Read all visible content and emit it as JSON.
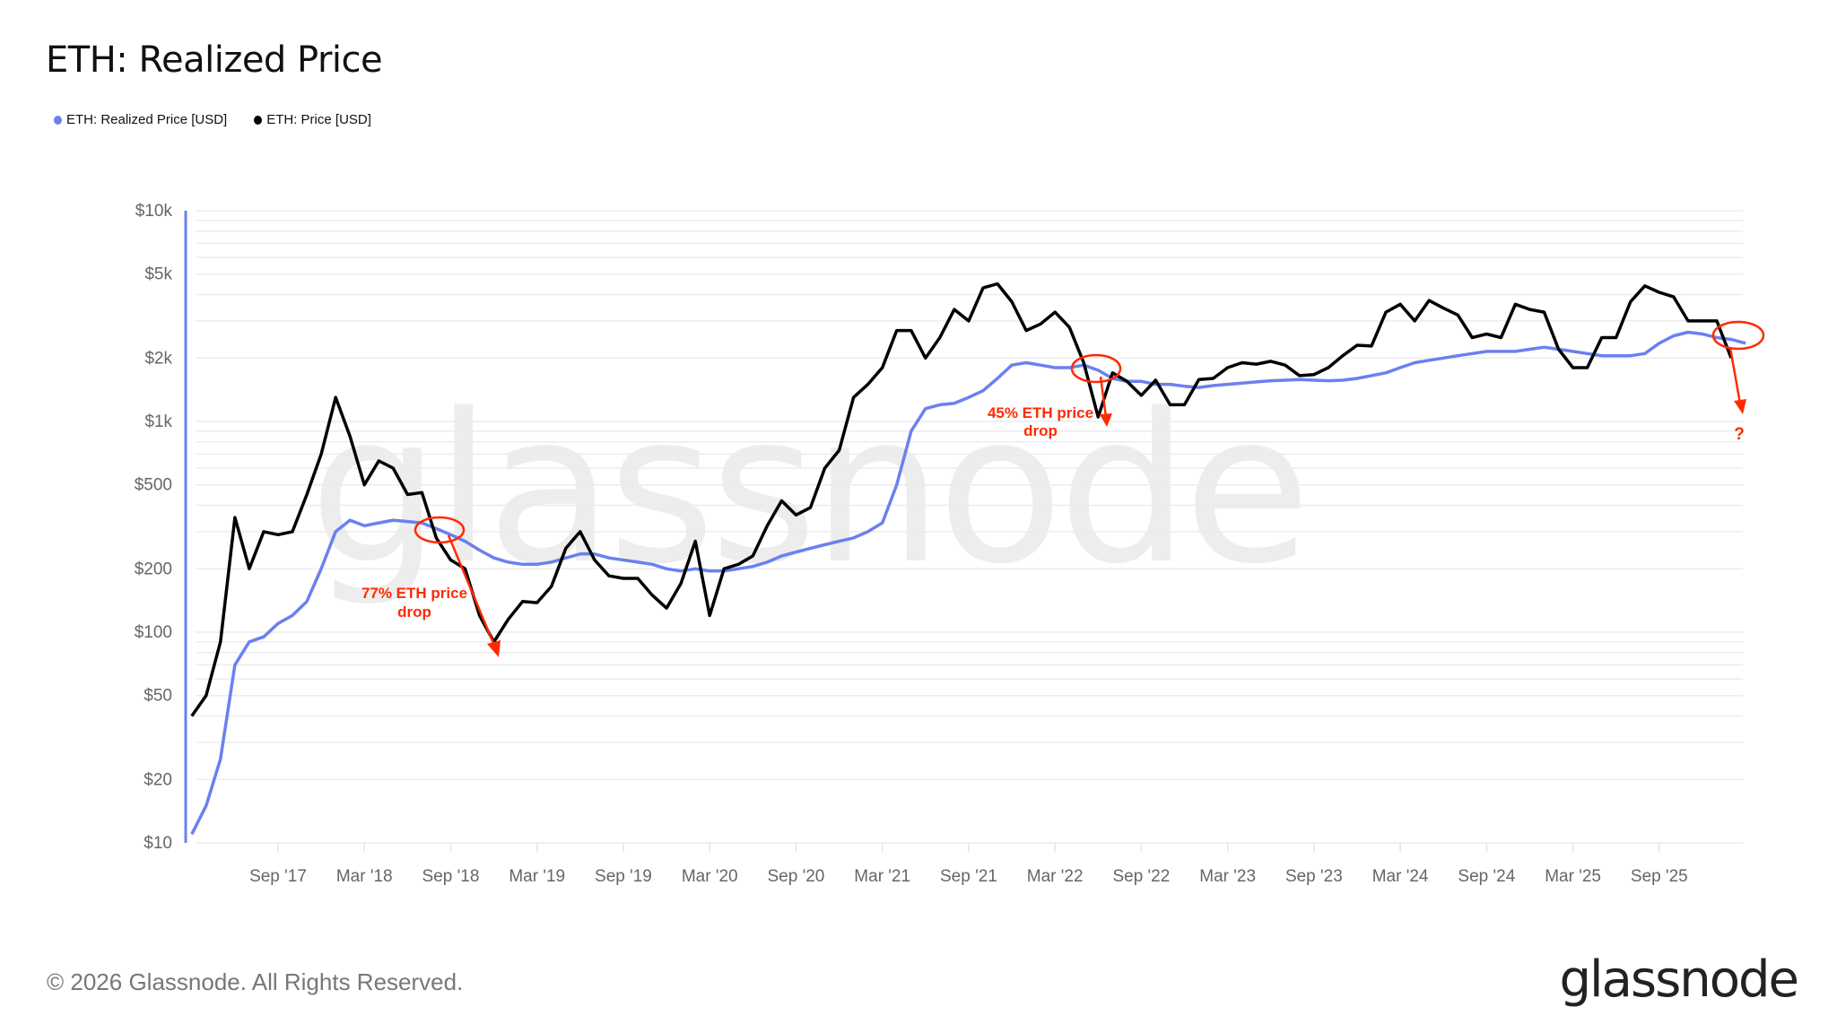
{
  "title": "ETH: Realized Price",
  "legend": [
    {
      "label": "ETH: Realized Price [USD]",
      "color": "#6b80f0"
    },
    {
      "label": "ETH: Price [USD]",
      "color": "#000000"
    }
  ],
  "footer": "© 2026 Glassnode. All Rights Reserved.",
  "logo": "glassnode",
  "watermark": "glassnode",
  "chart_data": {
    "type": "line",
    "title": "ETH: Realized Price",
    "y_scale": "log",
    "ylim": [
      10,
      10000
    ],
    "grid": true,
    "legend_position": "top-left",
    "y_ticks": [
      {
        "value": 10000,
        "label": "$10k"
      },
      {
        "value": 5000,
        "label": "$5k"
      },
      {
        "value": 2000,
        "label": "$2k"
      },
      {
        "value": 1000,
        "label": "$1k"
      },
      {
        "value": 500,
        "label": "$500"
      },
      {
        "value": 200,
        "label": "$200"
      },
      {
        "value": 100,
        "label": "$100"
      },
      {
        "value": 50,
        "label": "$50"
      },
      {
        "value": 20,
        "label": "$20"
      },
      {
        "value": 10,
        "label": "$10"
      }
    ],
    "x_ticks": [
      {
        "date": "2017-09",
        "label": "Sep '17"
      },
      {
        "date": "2018-03",
        "label": "Mar '18"
      },
      {
        "date": "2018-09",
        "label": "Sep '18"
      },
      {
        "date": "2019-03",
        "label": "Mar '19"
      },
      {
        "date": "2019-09",
        "label": "Sep '19"
      },
      {
        "date": "2020-03",
        "label": "Mar '20"
      },
      {
        "date": "2020-09",
        "label": "Sep '20"
      },
      {
        "date": "2021-03",
        "label": "Mar '21"
      },
      {
        "date": "2021-09",
        "label": "Sep '21"
      },
      {
        "date": "2022-03",
        "label": "Mar '22"
      },
      {
        "date": "2022-09",
        "label": "Sep '22"
      },
      {
        "date": "2023-03",
        "label": "Mar '23"
      },
      {
        "date": "2023-09",
        "label": "Sep '23"
      },
      {
        "date": "2024-03",
        "label": "Mar '24"
      },
      {
        "date": "2024-09",
        "label": "Sep '24"
      },
      {
        "date": "2025-03",
        "label": "Mar '25"
      },
      {
        "date": "2025-09",
        "label": "Sep '25"
      }
    ],
    "x_start": "2017-03",
    "series": [
      {
        "name": "ETH: Realized Price [USD]",
        "color": "#6b80f0",
        "values": [
          11,
          15,
          25,
          70,
          90,
          95,
          110,
          120,
          140,
          200,
          300,
          340,
          320,
          330,
          340,
          335,
          330,
          310,
          290,
          270,
          245,
          225,
          215,
          210,
          210,
          215,
          225,
          235,
          235,
          225,
          220,
          215,
          210,
          200,
          195,
          200,
          195,
          195,
          200,
          205,
          215,
          230,
          240,
          250,
          260,
          270,
          280,
          300,
          330,
          500,
          900,
          1150,
          1200,
          1220,
          1300,
          1400,
          1600,
          1850,
          1900,
          1850,
          1800,
          1800,
          1850,
          1750,
          1600,
          1550,
          1550,
          1500,
          1500,
          1470,
          1450,
          1480,
          1500,
          1520,
          1540,
          1560,
          1570,
          1580,
          1570,
          1560,
          1570,
          1600,
          1650,
          1700,
          1800,
          1900,
          1950,
          2000,
          2050,
          2100,
          2150,
          2150,
          2150,
          2200,
          2250,
          2200,
          2150,
          2100,
          2050,
          2050,
          2050,
          2100,
          2350,
          2550,
          2650,
          2600,
          2500,
          2450,
          2350
        ]
      },
      {
        "name": "ETH: Price [USD]",
        "color": "#000000",
        "values": [
          40,
          50,
          90,
          350,
          200,
          300,
          290,
          300,
          450,
          700,
          1300,
          850,
          500,
          650,
          600,
          450,
          460,
          280,
          220,
          200,
          120,
          90,
          115,
          140,
          138,
          165,
          250,
          300,
          220,
          185,
          180,
          180,
          150,
          130,
          170,
          270,
          120,
          200,
          210,
          230,
          320,
          420,
          360,
          390,
          600,
          730,
          1300,
          1500,
          1800,
          2700,
          2700,
          2000,
          2500,
          3400,
          3000,
          4300,
          4500,
          3700,
          2700,
          2900,
          3300,
          2800,
          1900,
          1050,
          1700,
          1550,
          1330,
          1570,
          1200,
          1200,
          1580,
          1600,
          1800,
          1900,
          1870,
          1930,
          1850,
          1650,
          1670,
          1800,
          2050,
          2300,
          2280,
          3300,
          3600,
          3000,
          3750,
          3450,
          3200,
          2500,
          2600,
          2500,
          3600,
          3400,
          3300,
          2200,
          1800,
          1800,
          2500,
          2500,
          3700,
          4400,
          4100,
          3900,
          3000,
          3000,
          3000,
          2000
        ]
      }
    ],
    "annotations": [
      {
        "text_line1": "77% ETH price",
        "text_line2": "drop",
        "color": "#ff2a00"
      },
      {
        "text_line1": "45% ETH price",
        "text_line2": "drop",
        "color": "#ff2a00"
      },
      {
        "text_line1": "?",
        "color": "#ff2a00"
      }
    ]
  }
}
